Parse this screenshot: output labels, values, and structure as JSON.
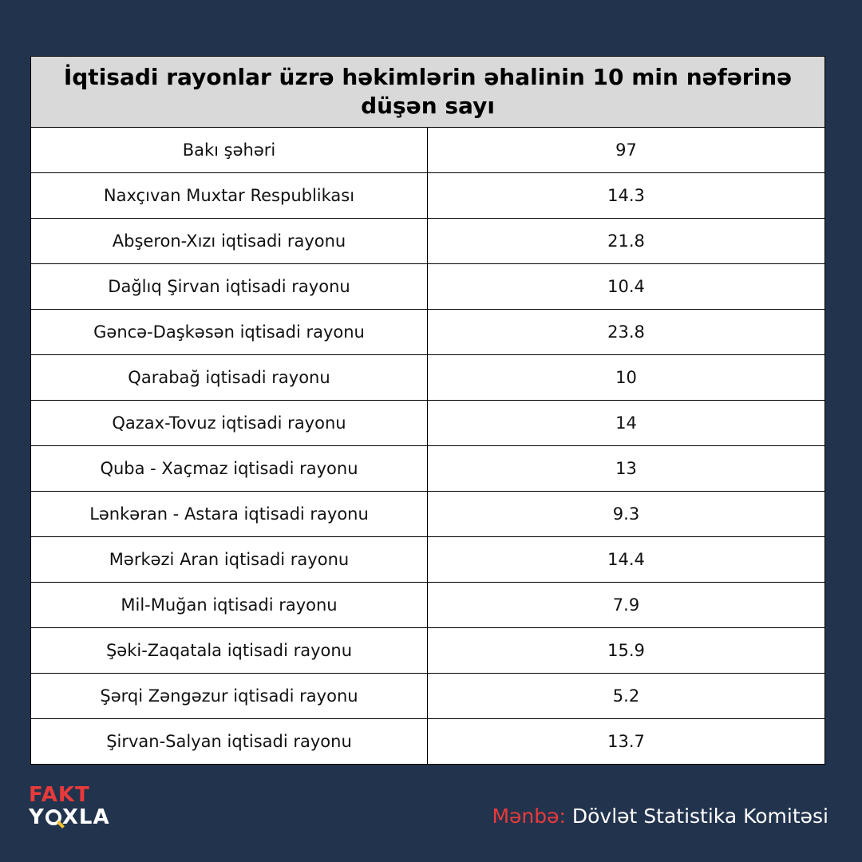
{
  "chart_data": {
    "type": "table",
    "title": "İqtisadi rayonlar üzrə həkimlərin əhalinin 10 min nəfərinə düşən sayı",
    "rows": [
      {
        "region": "Bakı şəhəri",
        "value": "97"
      },
      {
        "region": "Naxçıvan Muxtar Respublikası",
        "value": "14.3"
      },
      {
        "region": "Abşeron-Xızı iqtisadi rayonu",
        "value": "21.8"
      },
      {
        "region": "Dağlıq Şirvan iqtisadi rayonu",
        "value": "10.4"
      },
      {
        "region": "Gəncə-Daşkəsən  iqtisadi rayonu",
        "value": "23.8"
      },
      {
        "region": "Qarabağ iqtisadi rayonu",
        "value": "10"
      },
      {
        "region": "Qazax-Tovuz  iqtisadi rayonu",
        "value": "14"
      },
      {
        "region": "Quba - Xaçmaz iqtisadi rayonu",
        "value": "13"
      },
      {
        "region": "Lənkəran - Astara iqtisadi rayonu",
        "value": "9.3"
      },
      {
        "region": "Mərkəzi Aran iqtisadi rayonu",
        "value": "14.4"
      },
      {
        "region": "Mil-Muğan iqtisadi rayonu",
        "value": "7.9"
      },
      {
        "region": "Şəki-Zaqatala iqtisadi rayonu",
        "value": "15.9"
      },
      {
        "region": "Şərqi Zəngəzur iqtisadi rayonu",
        "value": "5.2"
      },
      {
        "region": "Şirvan-Salyan iqtisadi rayonu",
        "value": "13.7"
      }
    ]
  },
  "logo": {
    "line1": "FAKT",
    "line2_a": "Y",
    "line2_b": "XLA"
  },
  "source": {
    "label": "Mənbə:",
    "text": " Dövlət Statistika Komitəsi"
  },
  "colors": {
    "background": "#22334d",
    "header": "#d9d9d9",
    "accent": "#e83a3a"
  }
}
